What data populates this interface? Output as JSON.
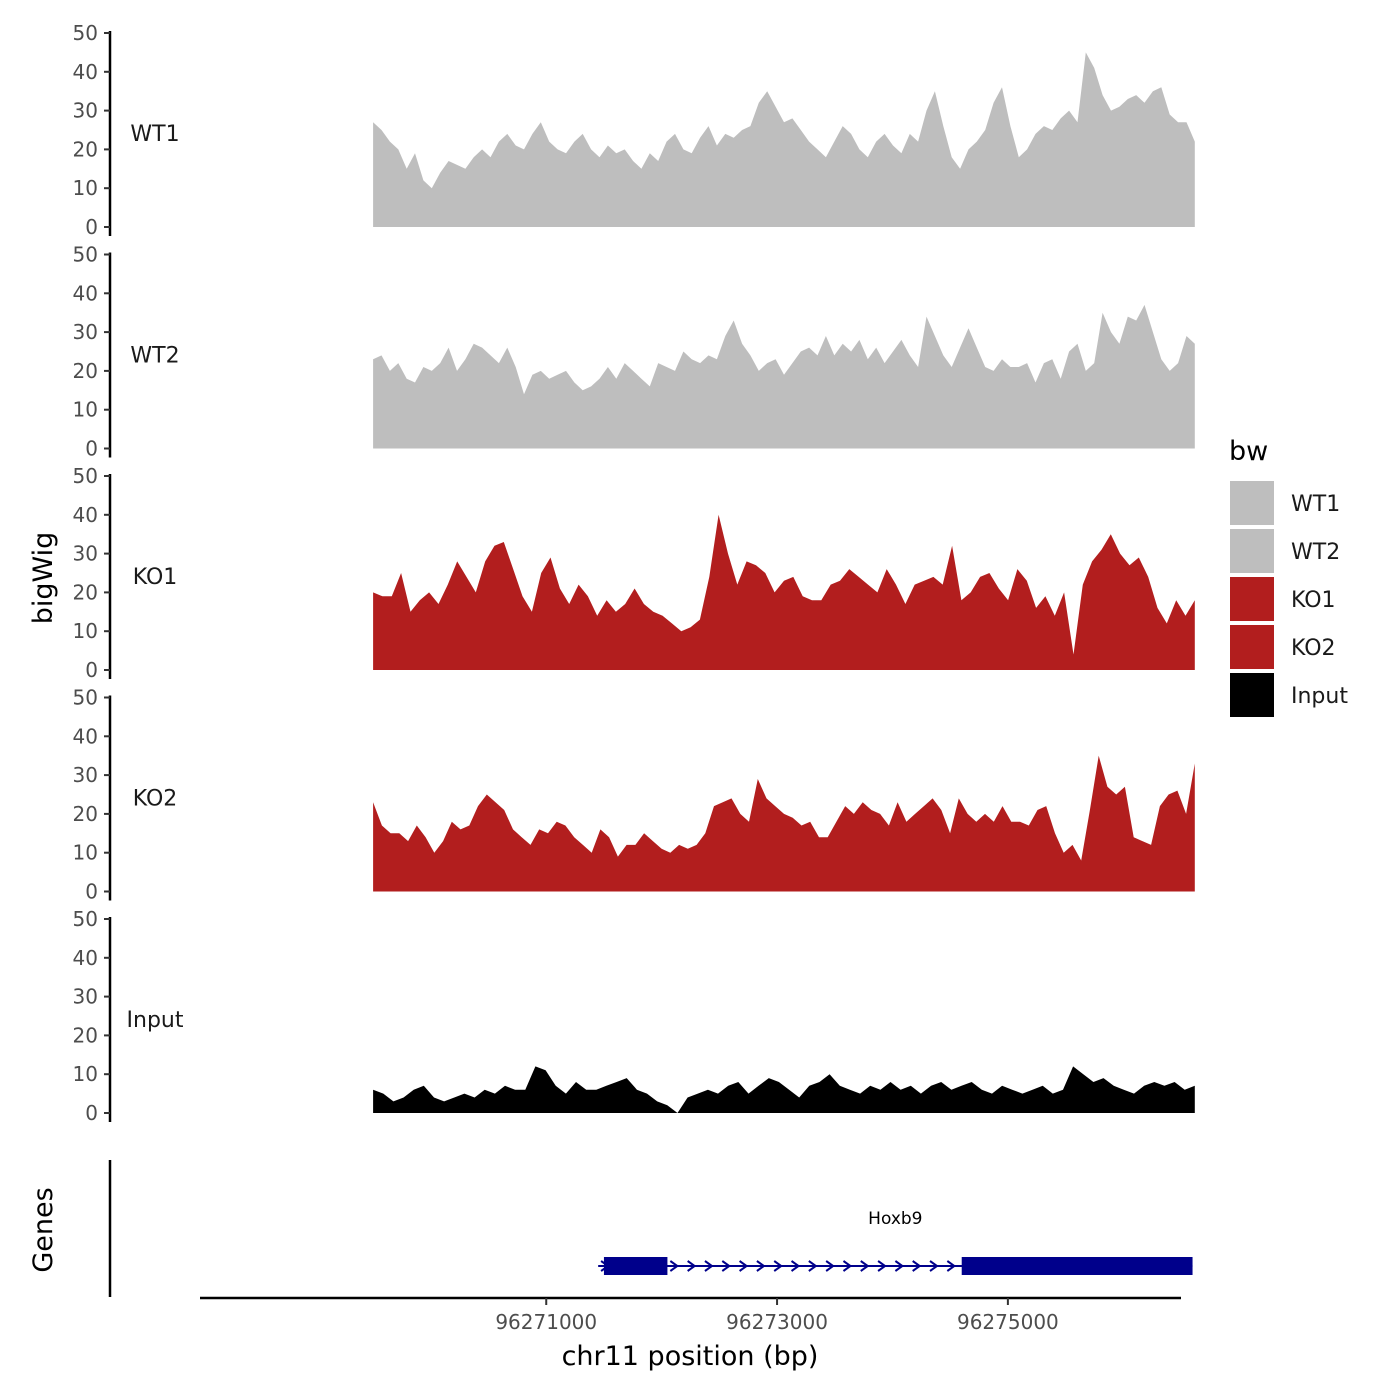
{
  "chart_data": {
    "type": "area",
    "ylabel": "bigWig",
    "xlabel": "chr11 position (bp)",
    "genes_label": "Genes",
    "ylim": [
      0,
      50
    ],
    "yticks": [
      "0",
      "10",
      "20",
      "30",
      "40",
      "50"
    ],
    "xlim": [
      96268000,
      96276500
    ],
    "xticks": [
      {
        "value": 96271000,
        "label": "96271000"
      },
      {
        "value": 96273000,
        "label": "96273000"
      },
      {
        "value": 96275000,
        "label": "96275000"
      }
    ],
    "x_range": [
      96269500,
      96276620
    ],
    "series": [
      {
        "name": "WT1",
        "color": "#bebebe",
        "values": [
          27,
          25,
          22,
          20,
          15,
          19,
          12,
          10,
          14,
          17,
          16,
          15,
          18,
          20,
          18,
          22,
          24,
          21,
          20,
          24,
          27,
          22,
          20,
          19,
          22,
          24,
          20,
          18,
          21,
          19,
          20,
          17,
          15,
          19,
          17,
          22,
          24,
          20,
          19,
          23,
          26,
          21,
          24,
          23,
          25,
          26,
          32,
          35,
          31,
          27,
          28,
          25,
          22,
          20,
          18,
          22,
          26,
          24,
          20,
          18,
          22,
          24,
          21,
          19,
          24,
          22,
          30,
          35,
          26,
          18,
          15,
          20,
          22,
          25,
          32,
          36,
          26,
          18,
          20,
          24,
          26,
          25,
          28,
          30,
          27,
          45,
          41,
          34,
          30,
          31,
          33,
          34,
          32,
          35,
          36,
          29,
          27,
          27,
          22
        ]
      },
      {
        "name": "WT2",
        "color": "#bebebe",
        "values": [
          23,
          24,
          20,
          22,
          18,
          17,
          21,
          20,
          22,
          26,
          20,
          23,
          27,
          26,
          24,
          22,
          26,
          21,
          14,
          19,
          20,
          18,
          19,
          20,
          17,
          15,
          16,
          18,
          21,
          18,
          22,
          20,
          18,
          16,
          22,
          21,
          20,
          25,
          23,
          22,
          24,
          23,
          29,
          33,
          27,
          24,
          20,
          22,
          23,
          19,
          22,
          25,
          26,
          24,
          29,
          24,
          27,
          25,
          28,
          23,
          26,
          22,
          25,
          28,
          24,
          21,
          34,
          29,
          24,
          21,
          26,
          31,
          26,
          21,
          20,
          23,
          21,
          21,
          22,
          17,
          22,
          23,
          18,
          25,
          27,
          20,
          22,
          35,
          30,
          27,
          34,
          33,
          37,
          30,
          23,
          20,
          22,
          29,
          27
        ]
      },
      {
        "name": "KO1",
        "color": "#b21e1e",
        "values": [
          20,
          19,
          19,
          25,
          15,
          18,
          20,
          17,
          22,
          28,
          24,
          20,
          28,
          32,
          33,
          26,
          19,
          15,
          25,
          29,
          21,
          17,
          22,
          19,
          14,
          18,
          15,
          17,
          21,
          17,
          15,
          14,
          12,
          10,
          11,
          13,
          24,
          40,
          30,
          22,
          28,
          27,
          25,
          20,
          23,
          24,
          19,
          18,
          18,
          22,
          23,
          26,
          24,
          22,
          20,
          26,
          22,
          17,
          22,
          23,
          24,
          22,
          32,
          18,
          20,
          24,
          25,
          21,
          18,
          26,
          23,
          16,
          19,
          14,
          20,
          4,
          22,
          28,
          31,
          35,
          30,
          27,
          29,
          24,
          16,
          12,
          18,
          14,
          18
        ]
      },
      {
        "name": "KO2",
        "color": "#b21e1e",
        "values": [
          23,
          17,
          15,
          15,
          13,
          17,
          14,
          10,
          13,
          18,
          16,
          17,
          22,
          25,
          23,
          21,
          16,
          14,
          12,
          16,
          15,
          18,
          17,
          14,
          12,
          10,
          16,
          14,
          9,
          12,
          12,
          15,
          13,
          11,
          10,
          12,
          11,
          12,
          15,
          22,
          23,
          24,
          20,
          18,
          29,
          24,
          22,
          20,
          19,
          17,
          18,
          14,
          14,
          18,
          22,
          20,
          23,
          21,
          20,
          17,
          23,
          18,
          20,
          22,
          24,
          21,
          15,
          24,
          20,
          18,
          20,
          18,
          22,
          18,
          18,
          17,
          21,
          22,
          15,
          10,
          12,
          8,
          21,
          35,
          27,
          25,
          27,
          14,
          13,
          12,
          22,
          25,
          26,
          20,
          33
        ]
      },
      {
        "name": "Input",
        "color": "#000000",
        "values": [
          6,
          5,
          3,
          4,
          6,
          7,
          4,
          3,
          4,
          5,
          4,
          6,
          5,
          7,
          6,
          6,
          12,
          11,
          7,
          5,
          8,
          6,
          6,
          7,
          8,
          9,
          6,
          5,
          3,
          2,
          0,
          4,
          5,
          6,
          5,
          7,
          8,
          5,
          7,
          9,
          8,
          6,
          4,
          7,
          8,
          10,
          7,
          6,
          5,
          7,
          6,
          8,
          6,
          7,
          5,
          7,
          8,
          6,
          7,
          8,
          6,
          5,
          7,
          6,
          5,
          6,
          7,
          5,
          6,
          12,
          10,
          8,
          9,
          7,
          6,
          5,
          7,
          8,
          7,
          8,
          6,
          7
        ]
      }
    ],
    "legend": {
      "title": "bw",
      "placement": "right"
    },
    "gene": {
      "name": "Hoxb9",
      "color": "#00008b",
      "start": 96271450,
      "end": 96276600,
      "exons": [
        [
          96271500,
          96272050
        ],
        [
          96274600,
          96276600
        ]
      ],
      "strand": "+"
    }
  }
}
